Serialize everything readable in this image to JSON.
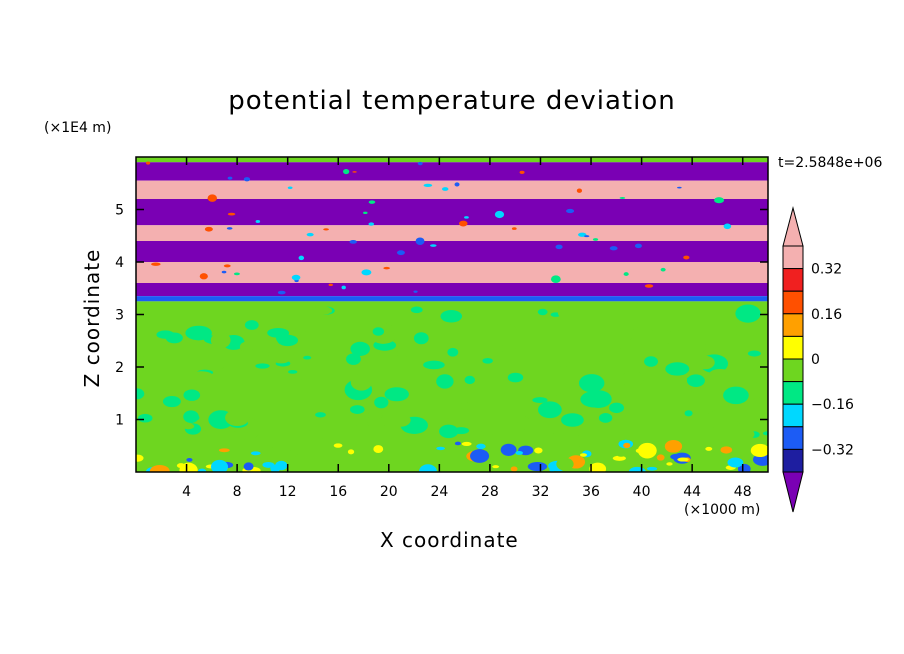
{
  "chart_data": {
    "type": "heatmap",
    "title": "potential temperature deviation",
    "xlabel": "X coordinate",
    "ylabel": "Z coordinate",
    "x_unit": "(×1000 m)",
    "y_unit": "(×1E4 m)",
    "annotation": "t=2.5848e+06",
    "xlim": [
      0,
      50
    ],
    "ylim": [
      0,
      6
    ],
    "x_ticks": [
      4,
      8,
      12,
      16,
      20,
      24,
      28,
      32,
      36,
      40,
      44,
      48
    ],
    "y_ticks": [
      1,
      2,
      3,
      4,
      5
    ],
    "colorbar": {
      "levels": [
        -0.4,
        -0.32,
        -0.24,
        -0.16,
        -0.08,
        0,
        0.08,
        0.16,
        0.24,
        0.32,
        0.4
      ],
      "labeled_levels": [
        "0.32",
        "0.16",
        "0",
        "−0.16",
        "−0.32"
      ],
      "labeled_values": [
        0.32,
        0.16,
        0,
        -0.16,
        -0.32
      ],
      "colors": [
        "#7a00b4",
        "#1e1ea0",
        "#1c5cf5",
        "#00d8ff",
        "#00e884",
        "#6ed620",
        "#ffff00",
        "#ffa000",
        "#ff5000",
        "#f02020",
        "#f4b0b0"
      ]
    },
    "bands": [
      {
        "z": [
          5.9,
          6.0
        ],
        "value": 0.0
      },
      {
        "z": [
          5.55,
          5.9
        ],
        "value": -0.4
      },
      {
        "z": [
          5.2,
          5.55
        ],
        "value": 0.42
      },
      {
        "z": [
          4.7,
          5.2
        ],
        "value": -0.4
      },
      {
        "z": [
          4.4,
          4.7
        ],
        "value": 0.42
      },
      {
        "z": [
          4.0,
          4.4
        ],
        "value": -0.4
      },
      {
        "z": [
          3.6,
          4.0
        ],
        "value": 0.42
      },
      {
        "z": [
          3.35,
          3.6
        ],
        "value": -0.4
      },
      {
        "z": [
          3.25,
          3.35
        ],
        "value": -0.2
      },
      {
        "z": [
          0.6,
          3.25
        ],
        "value": 0.05
      },
      {
        "z": [
          0.0,
          0.6
        ],
        "value": 0.0
      }
    ]
  }
}
